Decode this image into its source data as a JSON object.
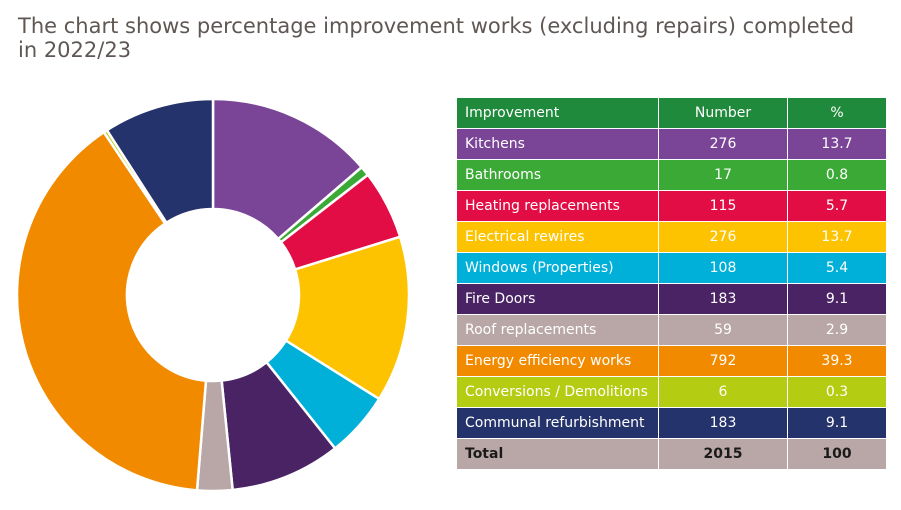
{
  "title": "The chart shows percentage improvement works (excluding repairs) completed in 2022/23",
  "table": {
    "headers": [
      "Improvement",
      "Number",
      "%"
    ],
    "header_color": "#1f8a3c",
    "rows": [
      {
        "label": "Kitchens",
        "number": "276",
        "percent": "13.7",
        "bg": "#7a4497",
        "fg": "#ffffff"
      },
      {
        "label": "Bathrooms",
        "number": "17",
        "percent": "0.8",
        "bg": "#3aa935",
        "fg": "#ffffff"
      },
      {
        "label": "Heating replacements",
        "number": "115",
        "percent": "5.7",
        "bg": "#e30d45",
        "fg": "#ffffff"
      },
      {
        "label": "Electrical rewires",
        "number": "276",
        "percent": "13.7",
        "bg": "#fdc300",
        "fg": "#ffffff"
      },
      {
        "label": "Windows (Properties)",
        "number": "108",
        "percent": "5.4",
        "bg": "#00b0d8",
        "fg": "#ffffff"
      },
      {
        "label": "Fire Doors",
        "number": "183",
        "percent": "9.1",
        "bg": "#4a2365",
        "fg": "#ffffff"
      },
      {
        "label": "Roof replacements",
        "number": "59",
        "percent": "2.9",
        "bg": "#b9a7a7",
        "fg": "#ffffff"
      },
      {
        "label": "Energy efficiency works",
        "number": "792",
        "percent": "39.3",
        "bg": "#f28a00",
        "fg": "#ffffff"
      },
      {
        "label": "Conversions / Demolitions",
        "number": "6",
        "percent": "0.3",
        "bg": "#b4cc12",
        "fg": "#ffffff"
      },
      {
        "label": "Communal refurbishment",
        "number": "183",
        "percent": "9.1",
        "bg": "#24336b",
        "fg": "#ffffff"
      }
    ],
    "total": {
      "label": "Total",
      "number": "2015",
      "percent": "100",
      "bg": "#b9a7a7",
      "fg": "#1a1a1a"
    }
  },
  "chart_data": {
    "type": "pie",
    "style": "donut",
    "categories": [
      "Kitchens",
      "Bathrooms",
      "Heating replacements",
      "Electrical rewires",
      "Windows (Properties)",
      "Fire Doors",
      "Roof replacements",
      "Energy efficiency works",
      "Conversions / Demolitions",
      "Communal refurbishment"
    ],
    "values": [
      13.7,
      0.8,
      5.7,
      13.7,
      5.4,
      9.1,
      2.9,
      39.3,
      0.3,
      9.1
    ],
    "colors": [
      "#7a4497",
      "#3aa935",
      "#e30d45",
      "#fdc300",
      "#00b0d8",
      "#4a2365",
      "#b9a7a7",
      "#f28a00",
      "#b4cc12",
      "#24336b"
    ],
    "start": "top, clockwise",
    "legend": "none"
  }
}
